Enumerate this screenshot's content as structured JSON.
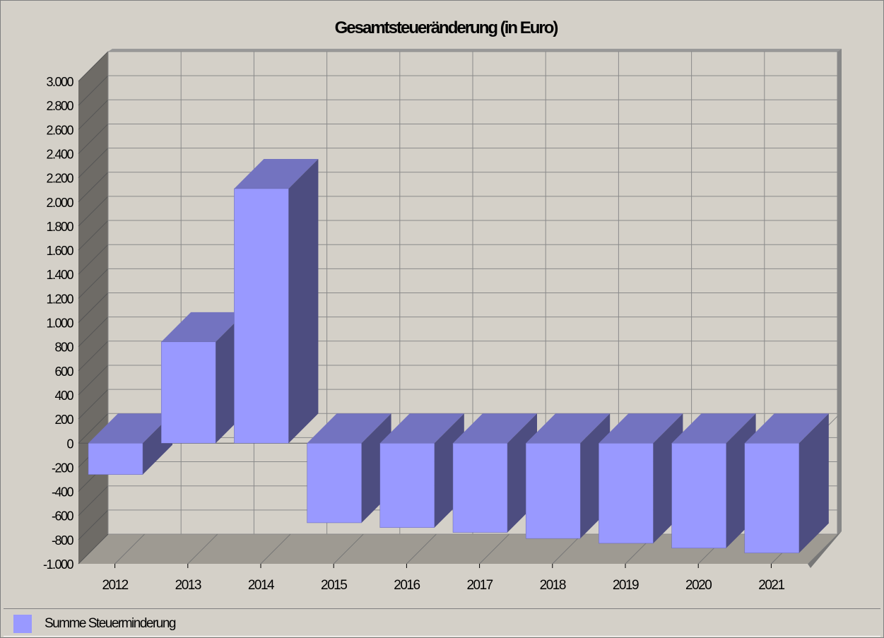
{
  "chart_data": {
    "type": "bar",
    "title": "Gesamtsteueränderung (in Euro)",
    "categories": [
      "2012",
      "2013",
      "2014",
      "2015",
      "2016",
      "2017",
      "2018",
      "2019",
      "2020",
      "2021"
    ],
    "series": [
      {
        "name": "Summe Steuerminderung",
        "values": [
          -260,
          840,
          2110,
          -660,
          -700,
          -740,
          -790,
          -830,
          -870,
          -910
        ]
      }
    ],
    "ylim": [
      -1000,
      3000
    ],
    "yticks": [
      3000,
      2800,
      2600,
      2400,
      2200,
      2000,
      1800,
      1600,
      1400,
      1200,
      1000,
      800,
      600,
      400,
      200,
      0,
      -200,
      -400,
      -600,
      -800,
      -1000
    ],
    "ytick_labels": [
      "3.000",
      "2.800",
      "2.600",
      "2.400",
      "2.200",
      "2.000",
      "1.800",
      "1.600",
      "1.400",
      "1.200",
      "1.000",
      "800",
      "600",
      "400",
      "200",
      "0",
      "-200",
      "-400",
      "-600",
      "-800",
      "-1.000"
    ],
    "grid": true,
    "legend": "bottom",
    "colors": {
      "bar_front": "#9999ff",
      "bar_top": "#7373c0",
      "bar_side": "#4d4d80",
      "back_wall": "#d4d0c8",
      "floor": "#9e9a92",
      "left_wall": "#6e6b66"
    }
  }
}
